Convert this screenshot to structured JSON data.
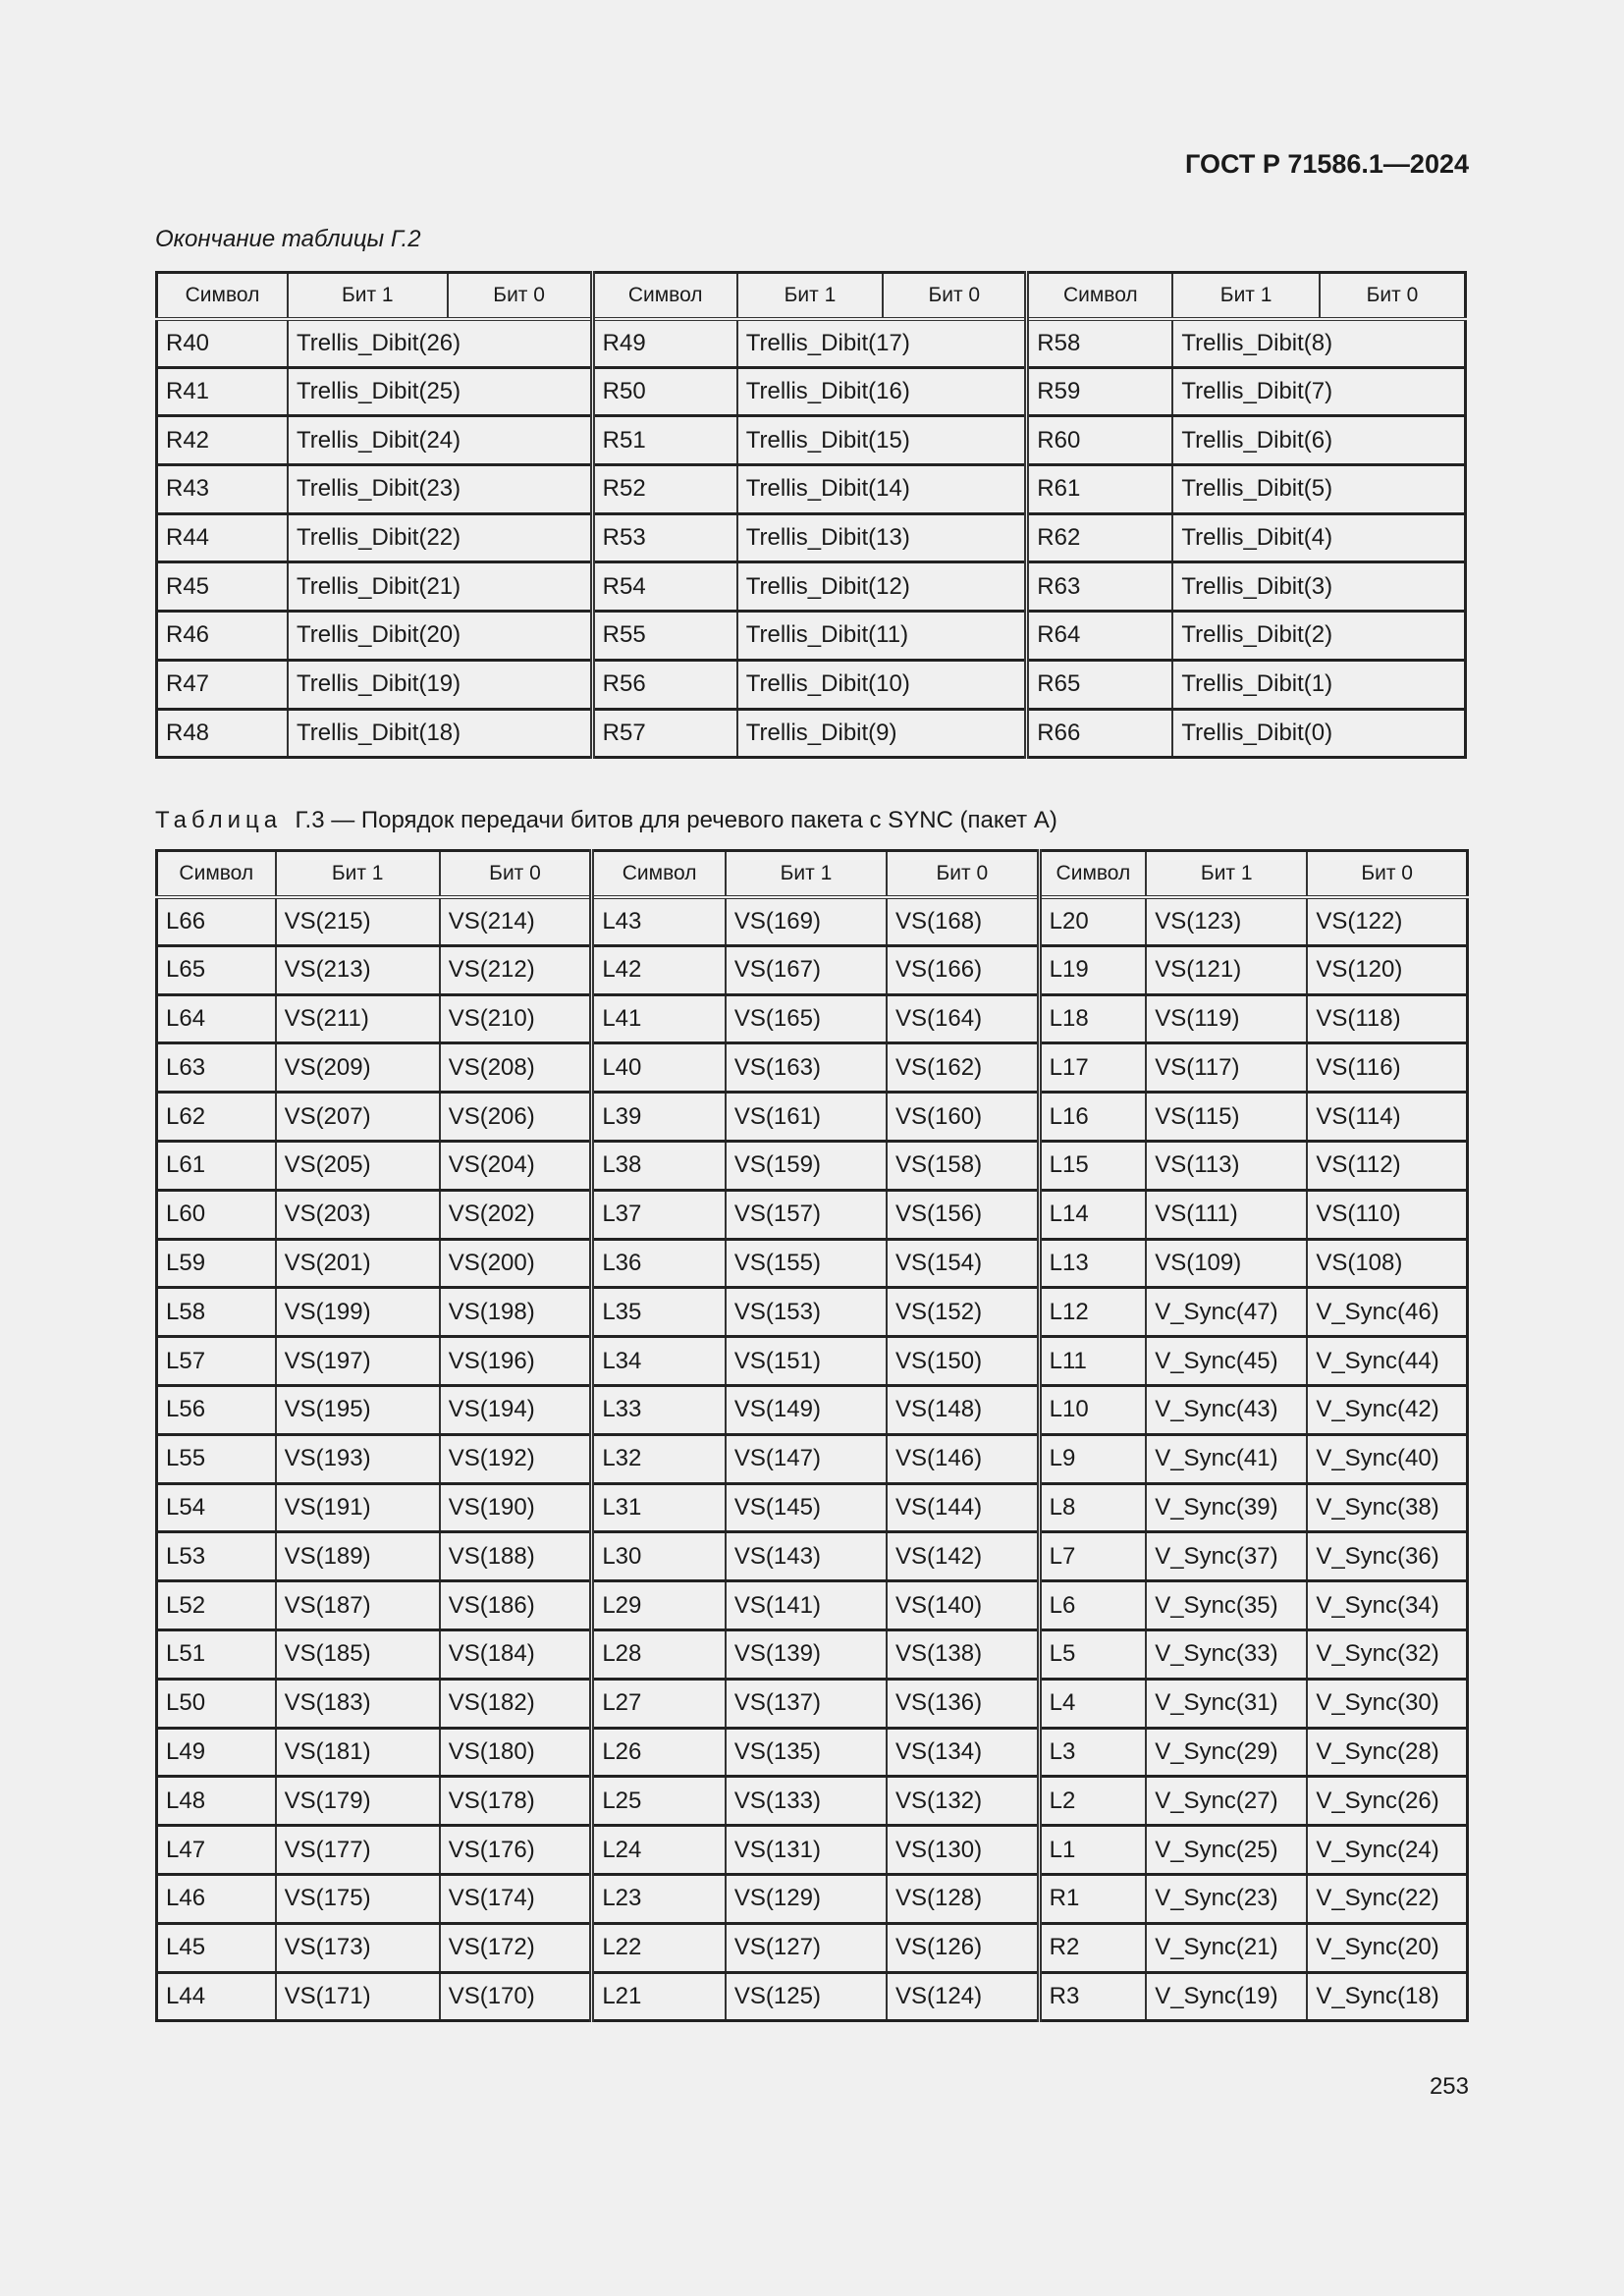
{
  "header": {
    "doc_code": "ГОСТ Р 71586.1—2024"
  },
  "table1": {
    "caption": "Окончание таблицы Г.2",
    "headers": [
      "Символ",
      "Бит 1",
      "Бит 0",
      "Символ",
      "Бит 1",
      "Бит 0",
      "Символ",
      "Бит 1",
      "Бит 0"
    ],
    "rows": [
      [
        "R40",
        "Trellis_Dibit(26)",
        "R49",
        "Trellis_Dibit(17)",
        "R58",
        "Trellis_Dibit(8)"
      ],
      [
        "R41",
        "Trellis_Dibit(25)",
        "R50",
        "Trellis_Dibit(16)",
        "R59",
        "Trellis_Dibit(7)"
      ],
      [
        "R42",
        "Trellis_Dibit(24)",
        "R51",
        "Trellis_Dibit(15)",
        "R60",
        "Trellis_Dibit(6)"
      ],
      [
        "R43",
        "Trellis_Dibit(23)",
        "R52",
        "Trellis_Dibit(14)",
        "R61",
        "Trellis_Dibit(5)"
      ],
      [
        "R44",
        "Trellis_Dibit(22)",
        "R53",
        "Trellis_Dibit(13)",
        "R62",
        "Trellis_Dibit(4)"
      ],
      [
        "R45",
        "Trellis_Dibit(21)",
        "R54",
        "Trellis_Dibit(12)",
        "R63",
        "Trellis_Dibit(3)"
      ],
      [
        "R46",
        "Trellis_Dibit(20)",
        "R55",
        "Trellis_Dibit(11)",
        "R64",
        "Trellis_Dibit(2)"
      ],
      [
        "R47",
        "Trellis_Dibit(19)",
        "R56",
        "Trellis_Dibit(10)",
        "R65",
        "Trellis_Dibit(1)"
      ],
      [
        "R48",
        "Trellis_Dibit(18)",
        "R57",
        "Trellis_Dibit(9)",
        "R66",
        "Trellis_Dibit(0)"
      ]
    ]
  },
  "table2": {
    "caption_prefix": "Таблица",
    "caption": "Г.3 — Порядок передачи битов для речевого пакета с SYNC (пакет А)",
    "headers": [
      "Символ",
      "Бит 1",
      "Бит 0",
      "Символ",
      "Бит 1",
      "Бит 0",
      "Символ",
      "Бит 1",
      "Бит 0"
    ],
    "rows": [
      [
        "L66",
        "VS(215)",
        "VS(214)",
        "L43",
        "VS(169)",
        "VS(168)",
        "L20",
        "VS(123)",
        "VS(122)"
      ],
      [
        "L65",
        "VS(213)",
        "VS(212)",
        "L42",
        "VS(167)",
        "VS(166)",
        "L19",
        "VS(121)",
        "VS(120)"
      ],
      [
        "L64",
        "VS(211)",
        "VS(210)",
        "L41",
        "VS(165)",
        "VS(164)",
        "L18",
        "VS(119)",
        "VS(118)"
      ],
      [
        "L63",
        "VS(209)",
        "VS(208)",
        "L40",
        "VS(163)",
        "VS(162)",
        "L17",
        "VS(117)",
        "VS(116)"
      ],
      [
        "L62",
        "VS(207)",
        "VS(206)",
        "L39",
        "VS(161)",
        "VS(160)",
        "L16",
        "VS(115)",
        "VS(114)"
      ],
      [
        "L61",
        "VS(205)",
        "VS(204)",
        "L38",
        "VS(159)",
        "VS(158)",
        "L15",
        "VS(113)",
        "VS(112)"
      ],
      [
        "L60",
        "VS(203)",
        "VS(202)",
        "L37",
        "VS(157)",
        "VS(156)",
        "L14",
        "VS(111)",
        "VS(110)"
      ],
      [
        "L59",
        "VS(201)",
        "VS(200)",
        "L36",
        "VS(155)",
        "VS(154)",
        "L13",
        "VS(109)",
        "VS(108)"
      ],
      [
        "L58",
        "VS(199)",
        "VS(198)",
        "L35",
        "VS(153)",
        "VS(152)",
        "L12",
        "V_Sync(47)",
        "V_Sync(46)"
      ],
      [
        "L57",
        "VS(197)",
        "VS(196)",
        "L34",
        "VS(151)",
        "VS(150)",
        "L11",
        "V_Sync(45)",
        "V_Sync(44)"
      ],
      [
        "L56",
        "VS(195)",
        "VS(194)",
        "L33",
        "VS(149)",
        "VS(148)",
        "L10",
        "V_Sync(43)",
        "V_Sync(42)"
      ],
      [
        "L55",
        "VS(193)",
        "VS(192)",
        "L32",
        "VS(147)",
        "VS(146)",
        "L9",
        "V_Sync(41)",
        "V_Sync(40)"
      ],
      [
        "L54",
        "VS(191)",
        "VS(190)",
        "L31",
        "VS(145)",
        "VS(144)",
        "L8",
        "V_Sync(39)",
        "V_Sync(38)"
      ],
      [
        "L53",
        "VS(189)",
        "VS(188)",
        "L30",
        "VS(143)",
        "VS(142)",
        "L7",
        "V_Sync(37)",
        "V_Sync(36)"
      ],
      [
        "L52",
        "VS(187)",
        "VS(186)",
        "L29",
        "VS(141)",
        "VS(140)",
        "L6",
        "V_Sync(35)",
        "V_Sync(34)"
      ],
      [
        "L51",
        "VS(185)",
        "VS(184)",
        "L28",
        "VS(139)",
        "VS(138)",
        "L5",
        "V_Sync(33)",
        "V_Sync(32)"
      ],
      [
        "L50",
        "VS(183)",
        "VS(182)",
        "L27",
        "VS(137)",
        "VS(136)",
        "L4",
        "V_Sync(31)",
        "V_Sync(30)"
      ],
      [
        "L49",
        "VS(181)",
        "VS(180)",
        "L26",
        "VS(135)",
        "VS(134)",
        "L3",
        "V_Sync(29)",
        "V_Sync(28)"
      ],
      [
        "L48",
        "VS(179)",
        "VS(178)",
        "L25",
        "VS(133)",
        "VS(132)",
        "L2",
        "V_Sync(27)",
        "V_Sync(26)"
      ],
      [
        "L47",
        "VS(177)",
        "VS(176)",
        "L24",
        "VS(131)",
        "VS(130)",
        "L1",
        "V_Sync(25)",
        "V_Sync(24)"
      ],
      [
        "L46",
        "VS(175)",
        "VS(174)",
        "L23",
        "VS(129)",
        "VS(128)",
        "R1",
        "V_Sync(23)",
        "V_Sync(22)"
      ],
      [
        "L45",
        "VS(173)",
        "VS(172)",
        "L22",
        "VS(127)",
        "VS(126)",
        "R2",
        "V_Sync(21)",
        "V_Sync(20)"
      ],
      [
        "L44",
        "VS(171)",
        "VS(170)",
        "L21",
        "VS(125)",
        "VS(124)",
        "R3",
        "V_Sync(19)",
        "V_Sync(18)"
      ]
    ]
  },
  "footer": {
    "page_number": "253"
  }
}
